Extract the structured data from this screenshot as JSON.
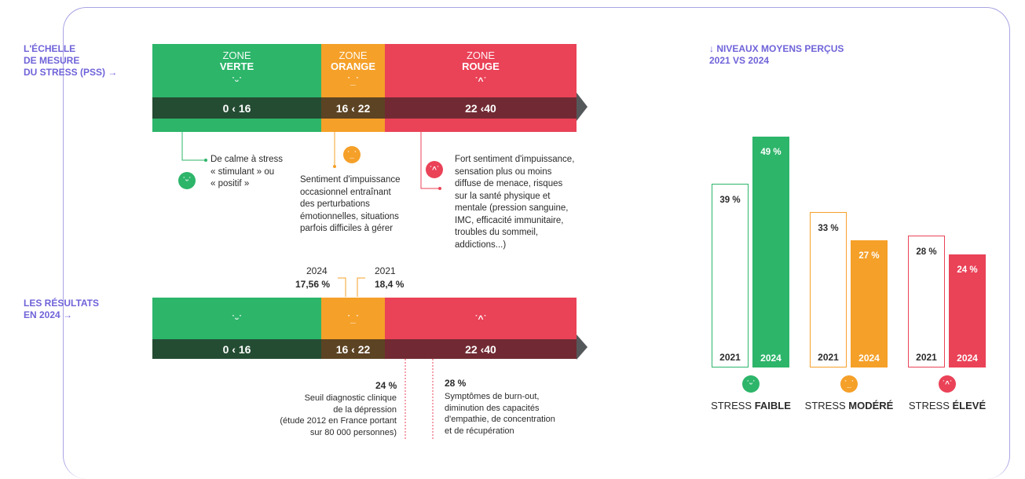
{
  "scale": {
    "title": "L'ÉCHELLE\nDE MESURE\nDU STRESS (PSS) →",
    "zones": [
      {
        "l1": "ZONE",
        "l2": "VERTE",
        "range": "0 ‹ 16",
        "color": "#2db56a",
        "dark": "#244c33"
      },
      {
        "l1": "ZONE",
        "l2": "ORANGE",
        "range": "16 ‹ 22",
        "color": "#f5a029",
        "dark": "#5c4323"
      },
      {
        "l1": "ZONE",
        "l2": "ROUGE",
        "range": "22 ‹40",
        "color": "#ea4257",
        "dark": "#712a33"
      }
    ],
    "descriptions": {
      "green": "De calme à stress\n« stimulant » ou\n« positif »",
      "orange": "Sentiment d'impuissance\noccasionnel entraînant\ndes perturbations\némotionnelles, situations\nparfois difficiles à gérer",
      "red": "Fort sentiment d'impuissance,\nsensation plus ou moins\ndiffuse de menace, risques\nsur la santé physique et\nmentale (pression sanguine,\nIMC, efficacité immunitaire,\ntroubles du sommeil,\naddictions...)"
    }
  },
  "results": {
    "title": "LES RÉSULTATS\nEN 2024 →",
    "ranges": [
      "0 ‹ 16",
      "16 ‹ 22",
      "22 ‹40"
    ],
    "marker_2024_year": "2024",
    "marker_2024_value": "17,56 %",
    "marker_2021_year": "2021",
    "marker_2021_value": "18,4 %",
    "note_left_pct": "24 %",
    "note_left": "Seuil diagnostic clinique\nde la dépression\n(étude 2012 en France portant\nsur 80 000 personnes)",
    "note_right_pct": "28 %",
    "note_right": "Symptômes de burn-out,\ndiminution des capacités\nd'empathie, de concentration\net de récupération"
  },
  "chart_title": "↓ NIVEAUX MOYENS PERÇUS\n2021 vs 2024",
  "chart_data": {
    "type": "bar",
    "title": "NIVEAUX MOYENS PERÇUS 2021 vs 2024",
    "categories": [
      "STRESS FAIBLE",
      "STRESS MODÉRÉ",
      "STRESS ÉLEVÉ"
    ],
    "category_prefix": [
      "STRESS ",
      "STRESS ",
      "STRESS "
    ],
    "category_bold": [
      "FAIBLE",
      "MODÉRÉ",
      "ÉLEVÉ"
    ],
    "series": [
      {
        "name": "2021",
        "values": [
          39,
          33,
          28
        ],
        "labels": [
          "39 %",
          "33 %",
          "28 %"
        ]
      },
      {
        "name": "2024",
        "values": [
          49,
          27,
          24
        ],
        "labels": [
          "49 %",
          "27 %",
          "24 %"
        ]
      }
    ],
    "colors": [
      "#2db56a",
      "#f5a029",
      "#ea4257"
    ],
    "ylim": [
      0,
      49
    ]
  }
}
